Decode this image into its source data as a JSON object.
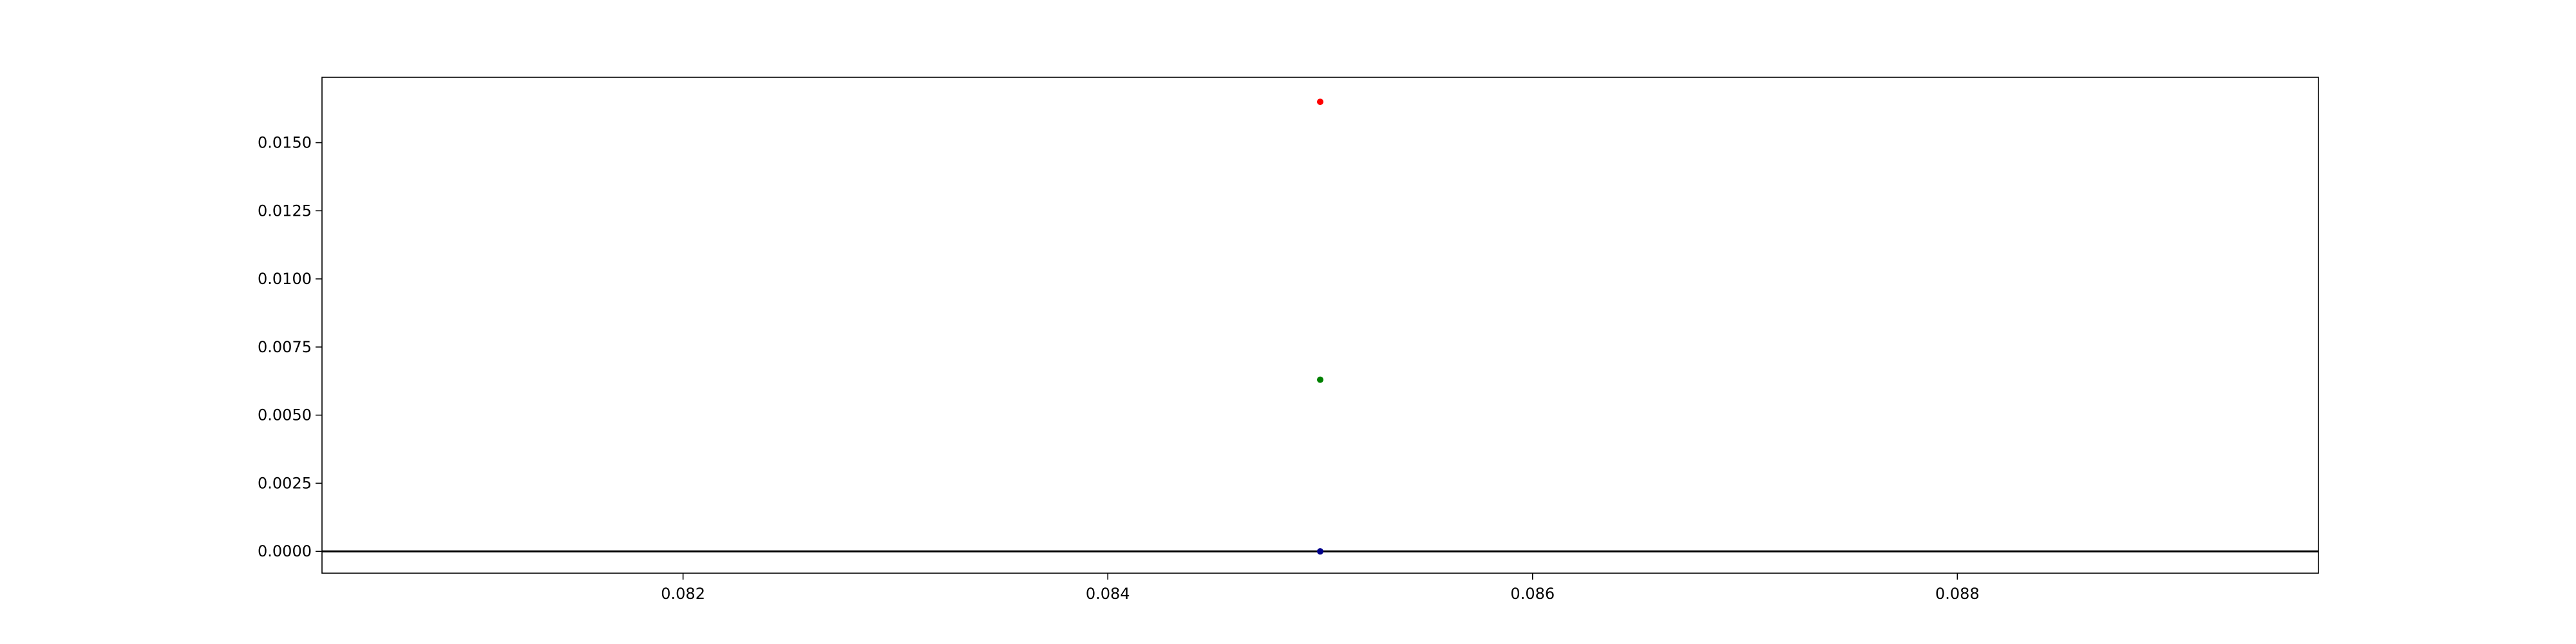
{
  "chart_data": {
    "type": "scatter",
    "title": "",
    "xlabel": "",
    "ylabel": "",
    "xlim": [
      0.0803,
      0.0897
    ],
    "ylim": [
      -0.0008,
      0.0174
    ],
    "x_ticks": [
      {
        "value": 0.082,
        "label": "0.082"
      },
      {
        "value": 0.084,
        "label": "0.084"
      },
      {
        "value": 0.086,
        "label": "0.086"
      },
      {
        "value": 0.088,
        "label": "0.088"
      }
    ],
    "y_ticks": [
      {
        "value": 0.0,
        "label": "0.0000"
      },
      {
        "value": 0.0025,
        "label": "0.0025"
      },
      {
        "value": 0.005,
        "label": "0.0050"
      },
      {
        "value": 0.0075,
        "label": "0.0075"
      },
      {
        "value": 0.01,
        "label": "0.0100"
      },
      {
        "value": 0.0125,
        "label": "0.0125"
      },
      {
        "value": 0.015,
        "label": "0.0150"
      }
    ],
    "points": [
      {
        "x": 0.085,
        "y": 0.0165,
        "color": "#ff0000"
      },
      {
        "x": 0.085,
        "y": 0.0063,
        "color": "#008000"
      },
      {
        "x": 0.085,
        "y": 0.0,
        "color": "#00008b"
      }
    ],
    "reference_lines": [
      {
        "orientation": "horizontal",
        "y": 0.0,
        "color": "#000000"
      }
    ],
    "grid": false,
    "legend": "none"
  }
}
